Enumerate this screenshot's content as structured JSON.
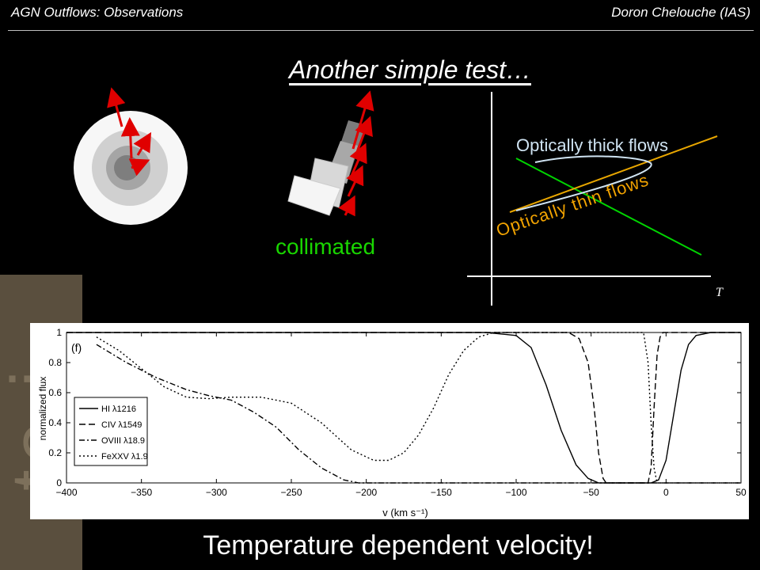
{
  "header": {
    "left": "AGN Outflows: Observations",
    "right": "Doron Chelouche (IAS)"
  },
  "slide": {
    "title": "Another simple test…",
    "collimated_label": "collimated",
    "caption": "Temperature dependent velocity!",
    "band_text": "te i",
    "colors": {
      "accent_green": "#19d600",
      "thick": "#ccdff0",
      "thin": "#f2a300",
      "arrow": "#e00000",
      "band": "#5a4f3e"
    }
  },
  "sketch": {
    "thick_label": "Optically thick flows",
    "thin_label": "Optically thin flows",
    "x_axis_label": "T"
  },
  "chart_data": {
    "type": "line",
    "panel_label": "(f)",
    "xlabel": "v (km s⁻¹)",
    "ylabel": "normalized flux",
    "xlim": [
      -400,
      50
    ],
    "ylim": [
      0,
      1
    ],
    "xticks": [
      -400,
      -350,
      -300,
      -250,
      -200,
      -150,
      -100,
      -50,
      0,
      50
    ],
    "yticks": [
      0,
      0.2,
      0.4,
      0.6,
      0.8,
      1
    ],
    "legend_position": "bottom-left",
    "series": [
      {
        "name": "HI λ1216",
        "dash": "solid",
        "x": [
          -400,
          -120,
          -100,
          -90,
          -80,
          -70,
          -60,
          -52,
          -45,
          -40,
          -35,
          -30,
          -10,
          -5,
          0,
          5,
          10,
          15,
          20,
          30,
          50
        ],
        "y": [
          1,
          1,
          0.98,
          0.9,
          0.65,
          0.35,
          0.12,
          0.03,
          0,
          0,
          0,
          0,
          0,
          0.02,
          0.15,
          0.45,
          0.75,
          0.92,
          0.98,
          1,
          1
        ]
      },
      {
        "name": "CIV λ1549",
        "dash": "dashed",
        "x": [
          -400,
          -65,
          -58,
          -52,
          -48,
          -45,
          -42,
          -40,
          -12,
          -10,
          -8,
          -6,
          -4,
          -2,
          50
        ],
        "y": [
          1,
          1,
          0.96,
          0.8,
          0.5,
          0.2,
          0.03,
          0,
          0,
          0.1,
          0.5,
          0.85,
          0.97,
          1,
          1
        ]
      },
      {
        "name": "OVIII λ18.9",
        "dash": "dashdot",
        "x": [
          -380,
          -360,
          -340,
          -320,
          -305,
          -290,
          -275,
          -260,
          -245,
          -230,
          -215,
          -205,
          -200,
          50
        ],
        "y": [
          0.92,
          0.8,
          0.7,
          0.62,
          0.58,
          0.55,
          0.47,
          0.37,
          0.22,
          0.1,
          0.02,
          0,
          0,
          0
        ]
      },
      {
        "name": "FeXXV λ1.9",
        "dash": "dotted",
        "x": [
          -380,
          -365,
          -350,
          -335,
          -320,
          -305,
          -290,
          -270,
          -250,
          -230,
          -210,
          -195,
          -185,
          -175,
          -165,
          -155,
          -145,
          -135,
          -125,
          -115,
          -108,
          -100,
          -80,
          -15,
          -12,
          -10,
          -8,
          -6,
          -4,
          50
        ],
        "y": [
          0.97,
          0.88,
          0.76,
          0.64,
          0.57,
          0.56,
          0.57,
          0.57,
          0.53,
          0.4,
          0.22,
          0.15,
          0.15,
          0.2,
          0.32,
          0.5,
          0.72,
          0.88,
          0.97,
          1,
          1,
          1,
          1,
          1,
          0.8,
          0.4,
          0.1,
          0,
          0,
          0
        ]
      }
    ]
  }
}
